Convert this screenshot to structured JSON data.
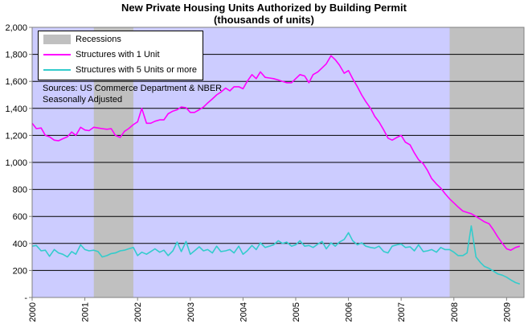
{
  "chart_data": {
    "type": "line",
    "title": "New Private Housing Units Authorized by Building Permit",
    "subtitle": "(thousands of units)",
    "xlabel": "",
    "ylabel": "",
    "xlim": [
      2000.0,
      2009.33
    ],
    "ylim": [
      0,
      2000
    ],
    "y_ticks": [
      "-",
      "200",
      "400",
      "600",
      "800",
      "1,000",
      "1,200",
      "1,400",
      "1,600",
      "1,800",
      "2,000"
    ],
    "x_ticks": [
      "2000",
      "2001",
      "2002",
      "2003",
      "2004",
      "2005",
      "2006",
      "2007",
      "2008",
      "2009"
    ],
    "grid": "horizontal",
    "background_color": "#ccccff",
    "legend_position": "top-left",
    "annotations": [
      "Sources: US Commerce Department & NBER",
      "Seasonally Adjusted"
    ],
    "recessions": {
      "name": "Recessions",
      "color": "#c0c0c0",
      "periods": [
        [
          2001.17,
          2001.92
        ],
        [
          2007.92,
          2009.33
        ]
      ]
    },
    "series": [
      {
        "name": "Structures with 1 Unit",
        "color": "#ff00ff",
        "x": [
          2000.0,
          2000.08,
          2000.17,
          2000.25,
          2000.33,
          2000.42,
          2000.5,
          2000.58,
          2000.67,
          2000.75,
          2000.83,
          2000.92,
          2001.0,
          2001.08,
          2001.17,
          2001.25,
          2001.33,
          2001.42,
          2001.5,
          2001.58,
          2001.67,
          2001.75,
          2001.83,
          2001.92,
          2002.0,
          2002.08,
          2002.17,
          2002.25,
          2002.33,
          2002.42,
          2002.5,
          2002.58,
          2002.67,
          2002.75,
          2002.83,
          2002.92,
          2003.0,
          2003.08,
          2003.17,
          2003.25,
          2003.33,
          2003.42,
          2003.5,
          2003.58,
          2003.67,
          2003.75,
          2003.83,
          2003.92,
          2004.0,
          2004.08,
          2004.17,
          2004.25,
          2004.33,
          2004.42,
          2004.5,
          2004.58,
          2004.67,
          2004.75,
          2004.83,
          2004.92,
          2005.0,
          2005.08,
          2005.17,
          2005.25,
          2005.33,
          2005.42,
          2005.5,
          2005.58,
          2005.67,
          2005.75,
          2005.83,
          2005.92,
          2006.0,
          2006.08,
          2006.17,
          2006.25,
          2006.33,
          2006.42,
          2006.5,
          2006.58,
          2006.67,
          2006.75,
          2006.83,
          2006.92,
          2007.0,
          2007.08,
          2007.17,
          2007.25,
          2007.33,
          2007.42,
          2007.5,
          2007.58,
          2007.67,
          2007.75,
          2007.83,
          2007.92,
          2008.0,
          2008.08,
          2008.17,
          2008.25,
          2008.33,
          2008.42,
          2008.5,
          2008.58,
          2008.67,
          2008.75,
          2008.83,
          2008.92,
          2009.0,
          2009.08,
          2009.17,
          2009.25
        ],
        "values": [
          1290,
          1250,
          1255,
          1200,
          1190,
          1165,
          1160,
          1175,
          1190,
          1225,
          1200,
          1260,
          1240,
          1235,
          1260,
          1255,
          1250,
          1245,
          1250,
          1200,
          1185,
          1230,
          1250,
          1280,
          1300,
          1400,
          1290,
          1290,
          1305,
          1315,
          1315,
          1360,
          1380,
          1390,
          1410,
          1405,
          1370,
          1370,
          1390,
          1410,
          1440,
          1470,
          1500,
          1520,
          1550,
          1530,
          1560,
          1560,
          1545,
          1600,
          1650,
          1620,
          1670,
          1630,
          1625,
          1620,
          1610,
          1600,
          1590,
          1590,
          1620,
          1650,
          1640,
          1590,
          1650,
          1670,
          1700,
          1730,
          1790,
          1760,
          1720,
          1660,
          1680,
          1620,
          1560,
          1500,
          1450,
          1400,
          1340,
          1300,
          1240,
          1180,
          1165,
          1185,
          1200,
          1150,
          1130,
          1070,
          1020,
          990,
          940,
          880,
          840,
          810,
          770,
          730,
          700,
          670,
          640,
          630,
          620,
          600,
          580,
          560,
          545,
          500,
          450,
          400,
          360,
          350,
          370,
          380
        ]
      },
      {
        "name": "Structures with 5 Units or more",
        "color": "#33cccc",
        "x": [
          2000.0,
          2000.08,
          2000.17,
          2000.25,
          2000.33,
          2000.42,
          2000.5,
          2000.58,
          2000.67,
          2000.75,
          2000.83,
          2000.92,
          2001.0,
          2001.08,
          2001.17,
          2001.25,
          2001.33,
          2001.42,
          2001.5,
          2001.58,
          2001.67,
          2001.75,
          2001.83,
          2001.92,
          2002.0,
          2002.08,
          2002.17,
          2002.25,
          2002.33,
          2002.42,
          2002.5,
          2002.58,
          2002.67,
          2002.75,
          2002.83,
          2002.92,
          2003.0,
          2003.08,
          2003.17,
          2003.25,
          2003.33,
          2003.42,
          2003.5,
          2003.58,
          2003.67,
          2003.75,
          2003.83,
          2003.92,
          2004.0,
          2004.08,
          2004.17,
          2004.25,
          2004.33,
          2004.42,
          2004.5,
          2004.58,
          2004.67,
          2004.75,
          2004.83,
          2004.92,
          2005.0,
          2005.08,
          2005.17,
          2005.25,
          2005.33,
          2005.42,
          2005.5,
          2005.58,
          2005.67,
          2005.75,
          2005.83,
          2005.92,
          2006.0,
          2006.08,
          2006.17,
          2006.25,
          2006.33,
          2006.42,
          2006.5,
          2006.58,
          2006.67,
          2006.75,
          2006.83,
          2006.92,
          2007.0,
          2007.08,
          2007.17,
          2007.25,
          2007.33,
          2007.42,
          2007.5,
          2007.58,
          2007.67,
          2007.75,
          2007.83,
          2007.92,
          2008.0,
          2008.08,
          2008.17,
          2008.25,
          2008.33,
          2008.42,
          2008.5,
          2008.58,
          2008.67,
          2008.75,
          2008.83,
          2008.92,
          2009.0,
          2009.08,
          2009.17,
          2009.25
        ],
        "values": [
          380,
          385,
          345,
          350,
          305,
          355,
          330,
          320,
          300,
          340,
          320,
          390,
          355,
          345,
          350,
          340,
          300,
          310,
          325,
          330,
          345,
          350,
          360,
          370,
          310,
          335,
          320,
          340,
          360,
          335,
          350,
          310,
          345,
          410,
          340,
          415,
          320,
          345,
          375,
          345,
          355,
          330,
          380,
          340,
          345,
          355,
          330,
          380,
          320,
          345,
          385,
          355,
          405,
          370,
          380,
          390,
          420,
          400,
          410,
          380,
          390,
          420,
          380,
          385,
          370,
          395,
          415,
          360,
          405,
          380,
          410,
          430,
          480,
          420,
          390,
          405,
          380,
          370,
          365,
          380,
          340,
          330,
          380,
          390,
          395,
          370,
          375,
          345,
          390,
          340,
          345,
          355,
          335,
          370,
          355,
          355,
          335,
          310,
          310,
          330,
          530,
          300,
          260,
          230,
          215,
          195,
          175,
          165,
          150,
          130,
          110,
          100
        ]
      }
    ]
  }
}
